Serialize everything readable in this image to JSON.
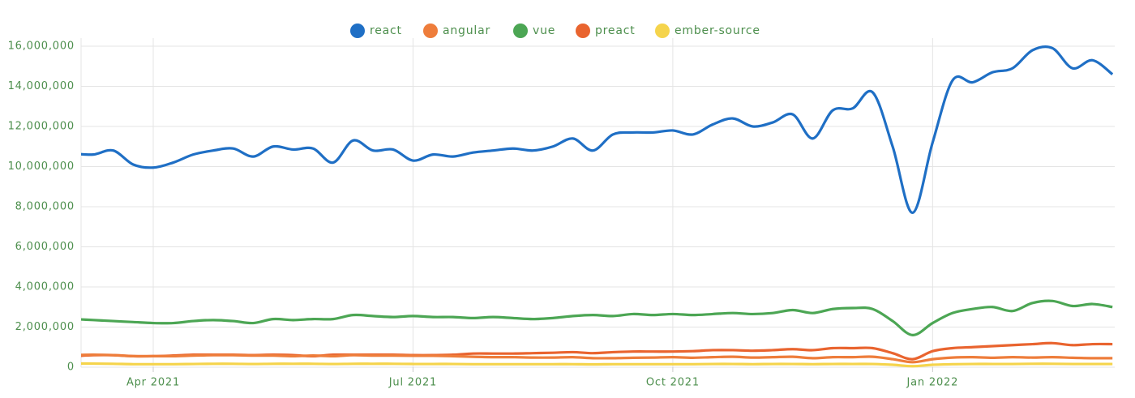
{
  "chart_data": {
    "type": "line",
    "categories": [
      null,
      null,
      null,
      null,
      "Apr 2021",
      null,
      null,
      null,
      null,
      null,
      null,
      null,
      null,
      null,
      null,
      null,
      null,
      "Jul 2021",
      null,
      null,
      null,
      null,
      null,
      null,
      null,
      null,
      null,
      null,
      null,
      null,
      "Oct 2021",
      null,
      null,
      null,
      null,
      null,
      null,
      null,
      null,
      null,
      null,
      null,
      null,
      "Jan 2022",
      null,
      null,
      null,
      null,
      null,
      null,
      null,
      null,
      null
    ],
    "series": [
      {
        "name": "react",
        "color": "#1f6fc5",
        "values": [
          10650000,
          10600000,
          10800000,
          10100000,
          9950000,
          10200000,
          10600000,
          10800000,
          10900000,
          10500000,
          11000000,
          10850000,
          10900000,
          10200000,
          11300000,
          10800000,
          10850000,
          10300000,
          10600000,
          10500000,
          10700000,
          10800000,
          10900000,
          10800000,
          11000000,
          11400000,
          10800000,
          11600000,
          11700000,
          11700000,
          11800000,
          11600000,
          12100000,
          12400000,
          12000000,
          12200000,
          12600000,
          11400000,
          12800000,
          12900000,
          13700000,
          11000000,
          7700000,
          11200000,
          14300000,
          14200000,
          14700000,
          14900000,
          15800000,
          15900000,
          14900000,
          15300000,
          14600000
        ]
      },
      {
        "name": "angular",
        "color": "#ee7d3b",
        "values": [
          600000,
          620000,
          600000,
          550000,
          550000,
          550000,
          580000,
          600000,
          600000,
          580000,
          580000,
          550000,
          580000,
          550000,
          600000,
          580000,
          580000,
          570000,
          570000,
          550000,
          520000,
          500000,
          500000,
          480000,
          480000,
          500000,
          450000,
          450000,
          470000,
          480000,
          500000,
          470000,
          500000,
          520000,
          480000,
          500000,
          520000,
          450000,
          500000,
          500000,
          520000,
          400000,
          250000,
          400000,
          480000,
          500000,
          470000,
          500000,
          480000,
          500000,
          470000,
          450000,
          450000
        ]
      },
      {
        "name": "vue",
        "color": "#4ca654",
        "values": [
          2400000,
          2350000,
          2300000,
          2250000,
          2200000,
          2200000,
          2300000,
          2350000,
          2300000,
          2200000,
          2400000,
          2350000,
          2400000,
          2400000,
          2600000,
          2550000,
          2500000,
          2550000,
          2500000,
          2500000,
          2450000,
          2500000,
          2450000,
          2400000,
          2450000,
          2550000,
          2600000,
          2550000,
          2650000,
          2600000,
          2650000,
          2600000,
          2650000,
          2700000,
          2650000,
          2700000,
          2850000,
          2700000,
          2900000,
          2950000,
          2900000,
          2300000,
          1600000,
          2200000,
          2700000,
          2900000,
          3000000,
          2800000,
          3200000,
          3300000,
          3050000,
          3150000,
          3000000
        ]
      },
      {
        "name": "preact",
        "color": "#e9642f",
        "values": [
          550000,
          600000,
          600000,
          550000,
          550000,
          580000,
          620000,
          620000,
          620000,
          600000,
          620000,
          600000,
          550000,
          620000,
          620000,
          620000,
          620000,
          600000,
          600000,
          620000,
          680000,
          680000,
          680000,
          700000,
          720000,
          750000,
          700000,
          750000,
          780000,
          780000,
          780000,
          800000,
          850000,
          850000,
          820000,
          850000,
          900000,
          850000,
          950000,
          950000,
          950000,
          700000,
          400000,
          800000,
          950000,
          1000000,
          1050000,
          1100000,
          1150000,
          1200000,
          1100000,
          1150000,
          1150000
        ]
      },
      {
        "name": "ember-source",
        "color": "#f5d44c",
        "values": [
          180000,
          180000,
          170000,
          150000,
          150000,
          150000,
          160000,
          170000,
          170000,
          160000,
          170000,
          170000,
          170000,
          160000,
          170000,
          170000,
          170000,
          160000,
          160000,
          160000,
          150000,
          150000,
          150000,
          150000,
          150000,
          150000,
          140000,
          150000,
          150000,
          150000,
          150000,
          150000,
          160000,
          160000,
          150000,
          160000,
          160000,
          150000,
          160000,
          160000,
          160000,
          120000,
          50000,
          120000,
          150000,
          160000,
          160000,
          160000,
          170000,
          170000,
          160000,
          160000,
          160000
        ]
      }
    ],
    "ylim": [
      0,
      16000000
    ],
    "yticks": [
      0,
      {
        "value": 2000000,
        "label": "2,000,000"
      },
      {
        "value": 4000000,
        "label": "4,000,000"
      },
      {
        "value": 6000000,
        "label": "6,000,000"
      },
      {
        "value": 8000000,
        "label": "8,000,000"
      },
      {
        "value": 10000000,
        "label": "10,000,000"
      },
      {
        "value": 12000000,
        "label": "12,000,000"
      },
      {
        "value": 14000000,
        "label": "14,000,000"
      },
      {
        "value": 16000000,
        "label": "16,000,000"
      }
    ],
    "grid": true,
    "legend": "top"
  }
}
